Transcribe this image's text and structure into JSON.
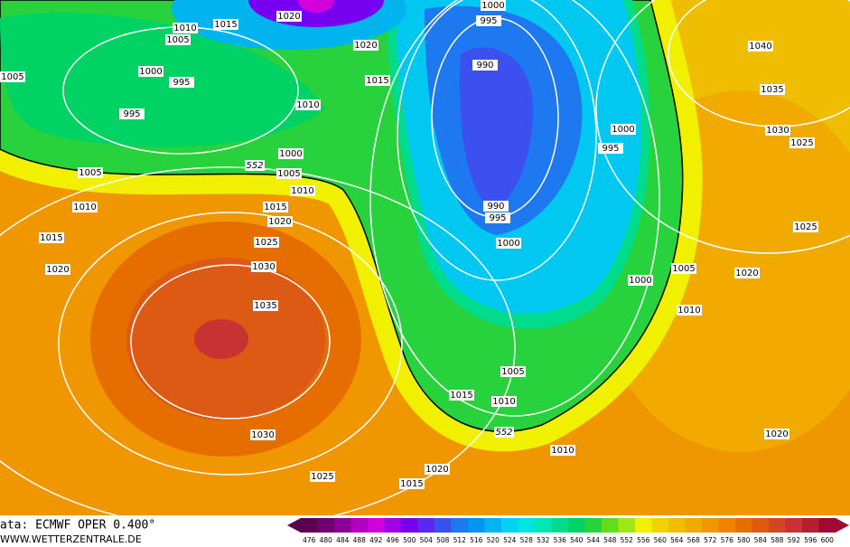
{
  "source": "ata: ECMWF  OPER  0.400°",
  "website": "WWW.WETTERZENTRALE.DE",
  "isobar_labels": [
    1020,
    1010,
    1015,
    1005,
    1020,
    1000,
    995,
    1005,
    1000,
    995,
    990,
    1015,
    995,
    1010,
    1000,
    995,
    1000,
    1005,
    1005,
    1010,
    1040,
    1035,
    1030,
    1025,
    990,
    995,
    1010,
    1015,
    1020,
    1015,
    1025,
    1000,
    1025,
    1020,
    1030,
    1005,
    1020,
    1000,
    1035,
    1010,
    1005,
    1015,
    1010,
    1030,
    1010,
    1020,
    1020,
    1025,
    1015
  ],
  "contour_labels": [
    552,
    552
  ],
  "scale": {
    "values": [
      476,
      480,
      484,
      488,
      492,
      496,
      500,
      504,
      508,
      512,
      516,
      520,
      524,
      528,
      532,
      536,
      540,
      544,
      548,
      552,
      556,
      560,
      564,
      568,
      572,
      576,
      580,
      584,
      588,
      592,
      596,
      600
    ],
    "colors": [
      "#5a0050",
      "#6e0070",
      "#8c0096",
      "#b400be",
      "#d200dc",
      "#a000e6",
      "#7800f0",
      "#5a28f0",
      "#3c50f0",
      "#1e78f0",
      "#0096f0",
      "#00b4f0",
      "#00d2f0",
      "#00e6dc",
      "#00e6b4",
      "#00dc8c",
      "#00d264",
      "#28d23c",
      "#64dc1e",
      "#a0e614",
      "#f0f000",
      "#f0d200",
      "#f0be00",
      "#f0aa00",
      "#f09600",
      "#f08200",
      "#e66e00",
      "#dc5a14",
      "#d24628",
      "#c83232",
      "#b41e32",
      "#a00a32"
    ]
  }
}
